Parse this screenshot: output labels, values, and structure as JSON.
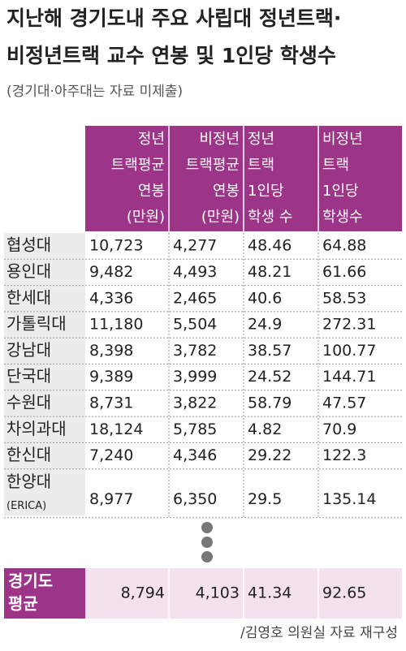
{
  "header": {
    "title": [
      "지난해 경기도내 주요 사립대 정년트랙·",
      "비정년트랙 교수 연봉 및 1인당 학생수"
    ],
    "subtitle": "(경기대·아주대는 자료 미제출)"
  },
  "table": {
    "columns": [
      [
        "정년",
        "트랙평균",
        "연봉",
        "(만원)"
      ],
      [
        "비정년",
        "트랙평균",
        "연봉",
        "(만원)"
      ],
      [
        "정년",
        "트랙",
        "1인당",
        "학생 수"
      ],
      [
        "비정년",
        "트랙",
        "1인당",
        "학생수"
      ]
    ],
    "rows": [
      {
        "label": "협성대",
        "values": [
          "10,723",
          "4,277",
          "48.46",
          "64.88"
        ]
      },
      {
        "label": "용인대",
        "values": [
          "9,482",
          "4,493",
          "48.21",
          "61.66"
        ]
      },
      {
        "label": "한세대",
        "values": [
          "4,336",
          "2,465",
          "40.6",
          "58.53"
        ]
      },
      {
        "label": "가톨릭대",
        "values": [
          "11,180",
          "5,504",
          "24.9",
          "272.31"
        ]
      },
      {
        "label": "강남대",
        "values": [
          "8,398",
          "3,782",
          "38.57",
          "100.77"
        ]
      },
      {
        "label": "단국대",
        "values": [
          "9,389",
          "3,999",
          "24.52",
          "144.71"
        ]
      },
      {
        "label": "수원대",
        "values": [
          "8,731",
          "3,822",
          "58.79",
          "47.57"
        ]
      },
      {
        "label": "차의과대",
        "values": [
          "18,124",
          "5,785",
          "4.82",
          "70.9"
        ]
      },
      {
        "label": "한신대",
        "values": [
          "7,240",
          "4,346",
          "29.22",
          "122.3"
        ]
      },
      {
        "label": "한양대",
        "note": "(ERICA)",
        "values": [
          "8,977",
          "6,350",
          "29.5",
          "135.14"
        ]
      }
    ],
    "average": {
      "label": [
        "경기도",
        "평균"
      ],
      "values": [
        "8,794",
        "4,103",
        "41.34",
        "92.65"
      ]
    }
  },
  "footer": {
    "source": "/김영호 의원실 자료 재구성"
  }
}
